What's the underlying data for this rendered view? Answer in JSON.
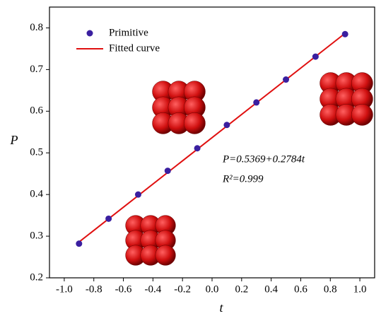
{
  "chart_data": {
    "type": "scatter",
    "x_label": "t",
    "y_label": "P",
    "xlim": [
      -1.1,
      1.1
    ],
    "ylim": [
      0.2,
      0.85
    ],
    "xticks": [
      {
        "value": -1.0,
        "label": "-1.0"
      },
      -0.8,
      -0.6,
      -0.4,
      -0.2,
      {
        "value": 0.0,
        "label": "0.0"
      },
      0.2,
      0.4,
      0.6,
      0.8,
      {
        "value": 1.0,
        "label": "1.0"
      }
    ],
    "yticks": [
      0.2,
      0.3,
      0.4,
      0.5,
      0.6,
      0.7,
      0.8
    ],
    "legend": "upper left",
    "series": [
      {
        "name": "Primitive",
        "mode": "markers",
        "color": "#3a1fa0",
        "x": [
          -0.9,
          -0.7,
          -0.5,
          -0.3,
          -0.1,
          0.1,
          0.3,
          0.5,
          0.7,
          0.9
        ],
        "values": [
          0.282,
          0.342,
          0.4,
          0.457,
          0.511,
          0.567,
          0.621,
          0.676,
          0.731,
          0.785
        ]
      },
      {
        "name": "Fitted curve",
        "mode": "line",
        "color": "#e01010",
        "x": [
          -0.9,
          0.9
        ],
        "values": [
          0.286,
          0.787
        ]
      }
    ],
    "annotations": [
      "P=0.5369+0.2784t",
      "R²=0.999"
    ]
  }
}
